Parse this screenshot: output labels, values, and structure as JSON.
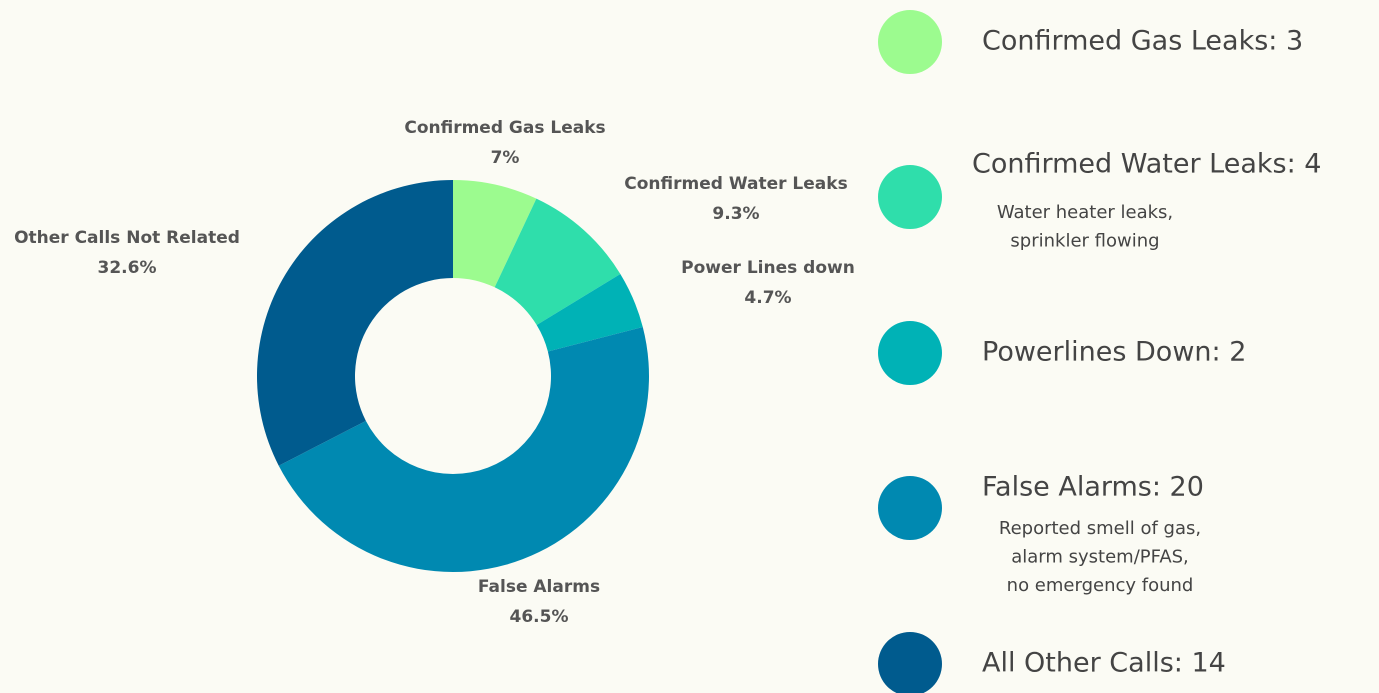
{
  "chart_data": {
    "type": "donut",
    "categories": [
      "Confirmed Gas Leaks",
      "Confirmed Water Leaks",
      "Power Lines down",
      "False Alarms",
      "Other Calls Not Related"
    ],
    "values": [
      7,
      9.3,
      4.7,
      46.5,
      32.6
    ],
    "value_labels": [
      "7%",
      "9.3%",
      "4.7%",
      "46.5%",
      "32.6%"
    ],
    "colors": [
      "#9cfb8f",
      "#2fdeab",
      "#00b2b6",
      "#0089b1",
      "#005b8e"
    ],
    "legend": [
      {
        "label": "Confirmed Gas Leaks: 3",
        "color": "#9cfb8f",
        "note": []
      },
      {
        "label": "Confirmed Water Leaks: 4",
        "color": "#2fdeab",
        "note": [
          "Water heater leaks,",
          "sprinkler flowing"
        ]
      },
      {
        "label": "Powerlines Down: 2",
        "color": "#00b2b6",
        "note": []
      },
      {
        "label": "False Alarms: 20",
        "color": "#0089b1",
        "note": [
          "Reported smell of gas,",
          "alarm system/PFAS,",
          "no emergency found"
        ]
      },
      {
        "label": "All Other Calls: 14",
        "color": "#005b8e",
        "note": []
      }
    ]
  }
}
